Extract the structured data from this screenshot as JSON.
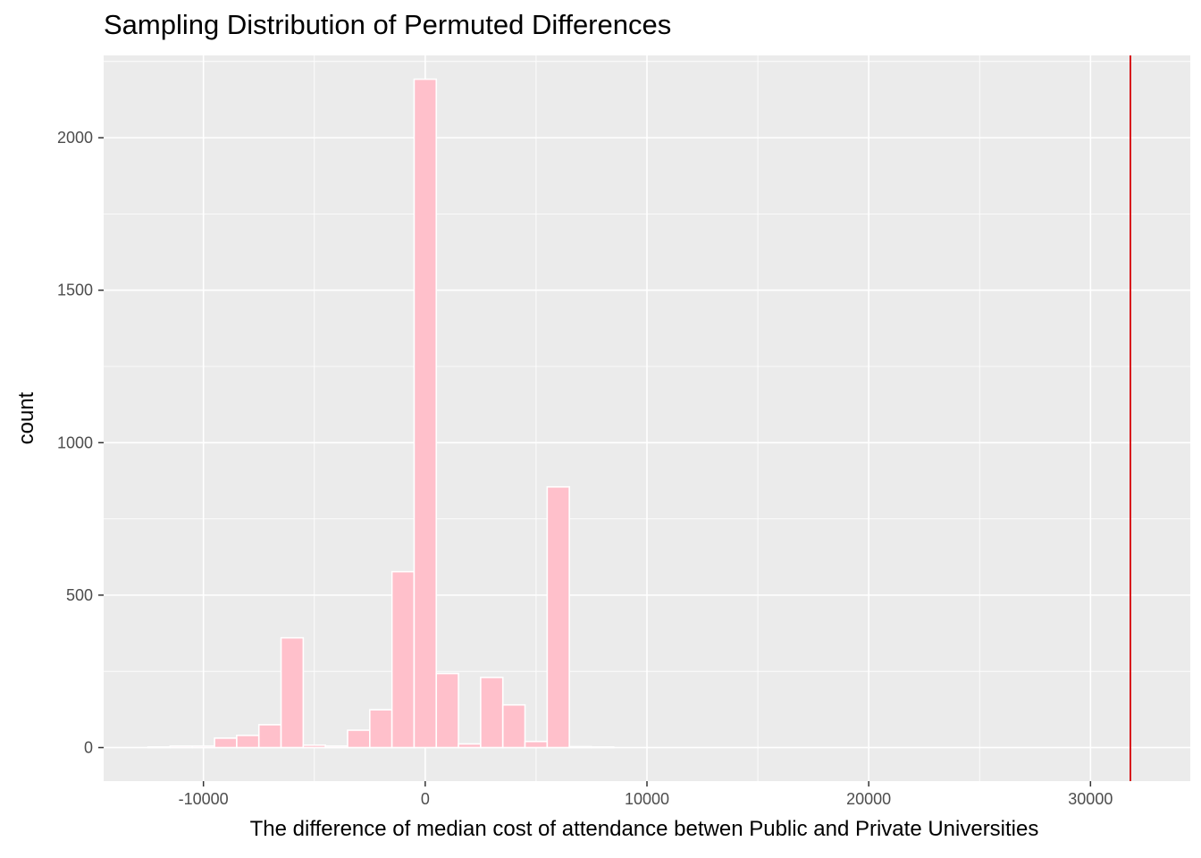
{
  "chart_data": {
    "type": "bar",
    "title": "Sampling Distribution of Permuted Differences",
    "xlabel": "The difference of median cost of attendance betwen Public and Private Universities",
    "ylabel": "count",
    "xlim": [
      -14500,
      34500
    ],
    "ylim": [
      -110,
      2270
    ],
    "grid": true,
    "x_ticks": [
      -10000,
      0,
      10000,
      20000,
      30000
    ],
    "x_tick_labels": [
      "-10000",
      "0",
      "10000",
      "20000",
      "30000"
    ],
    "y_ticks": [
      0,
      500,
      1000,
      1500,
      2000
    ],
    "y_tick_labels": [
      "0",
      "500",
      "1000",
      "1500",
      "2000"
    ],
    "bin_width": 1000,
    "bins": [
      {
        "start": -12500,
        "end": -11500,
        "count": 2
      },
      {
        "start": -11500,
        "end": -10500,
        "count": 5
      },
      {
        "start": -10500,
        "end": -9500,
        "count": 5
      },
      {
        "start": -9500,
        "end": -8500,
        "count": 31
      },
      {
        "start": -8500,
        "end": -7500,
        "count": 40
      },
      {
        "start": -7500,
        "end": -6500,
        "count": 75
      },
      {
        "start": -6500,
        "end": -5500,
        "count": 360
      },
      {
        "start": -5500,
        "end": -4500,
        "count": 8
      },
      {
        "start": -4500,
        "end": -3500,
        "count": 5
      },
      {
        "start": -3500,
        "end": -2500,
        "count": 57
      },
      {
        "start": -2500,
        "end": -1500,
        "count": 124
      },
      {
        "start": -1500,
        "end": -500,
        "count": 577
      },
      {
        "start": -500,
        "end": 500,
        "count": 2192
      },
      {
        "start": 500,
        "end": 1500,
        "count": 243
      },
      {
        "start": 1500,
        "end": 2500,
        "count": 12
      },
      {
        "start": 2500,
        "end": 3500,
        "count": 230
      },
      {
        "start": 3500,
        "end": 4500,
        "count": 140
      },
      {
        "start": 4500,
        "end": 5500,
        "count": 20
      },
      {
        "start": 5500,
        "end": 6500,
        "count": 855
      },
      {
        "start": 6500,
        "end": 7500,
        "count": 3
      },
      {
        "start": 7500,
        "end": 8500,
        "count": 2
      }
    ],
    "reference_line": {
      "x": 31800,
      "color": "#d7191c"
    },
    "colors": {
      "bar_fill": "#ffc0cb",
      "bar_outline": "#ffffff",
      "panel_bg": "#ebebeb",
      "grid": "#ffffff"
    }
  }
}
